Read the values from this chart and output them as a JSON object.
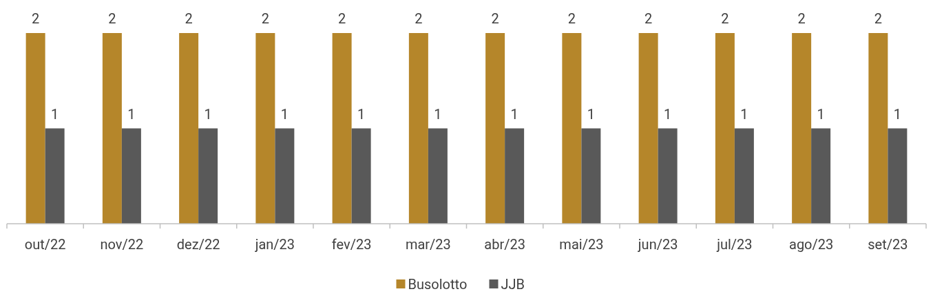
{
  "chart_data": {
    "type": "bar",
    "categories": [
      "out/22",
      "nov/22",
      "dez/22",
      "jan/23",
      "fev/23",
      "mar/23",
      "abr/23",
      "mai/23",
      "jun/23",
      "jul/23",
      "ago/23",
      "set/23"
    ],
    "series": [
      {
        "name": "Busolotto",
        "color": "#b5862a",
        "values": [
          2,
          2,
          2,
          2,
          2,
          2,
          2,
          2,
          2,
          2,
          2,
          2
        ]
      },
      {
        "name": "JJB",
        "color": "#595959",
        "values": [
          1,
          1,
          1,
          1,
          1,
          1,
          1,
          1,
          1,
          1,
          1,
          1
        ]
      }
    ],
    "data_labels": true,
    "legend": "bottom"
  }
}
